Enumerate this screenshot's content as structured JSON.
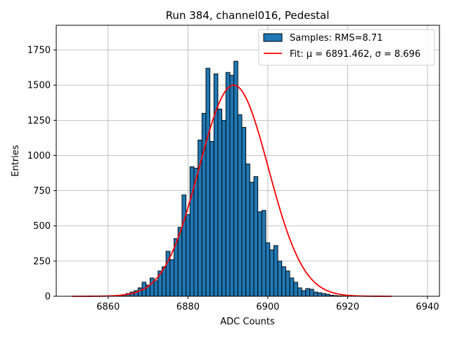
{
  "chart_data": {
    "type": "bar",
    "title": "Run 384, channel016, Pedestal",
    "xlabel": "ADC Counts",
    "ylabel": "Entries",
    "xlim": [
      6847,
      6943
    ],
    "ylim": [
      0,
      1925
    ],
    "xticks": [
      6860,
      6880,
      6900,
      6920,
      6940
    ],
    "yticks": [
      0,
      250,
      500,
      750,
      1000,
      1250,
      1500,
      1750
    ],
    "grid": true,
    "legend_position": "top-right",
    "bin_width": 1,
    "bar_color": "#1f77b4",
    "fit_color": "#ff0000",
    "bins": {
      "x": [
        6861,
        6862,
        6863,
        6864,
        6865,
        6866,
        6867,
        6868,
        6869,
        6870,
        6871,
        6872,
        6873,
        6874,
        6875,
        6876,
        6877,
        6878,
        6879,
        6880,
        6881,
        6882,
        6883,
        6884,
        6885,
        6886,
        6887,
        6888,
        6889,
        6890,
        6891,
        6892,
        6893,
        6894,
        6895,
        6896,
        6897,
        6898,
        6899,
        6900,
        6901,
        6902,
        6903,
        6904,
        6905,
        6906,
        6907,
        6908,
        6909,
        6910,
        6911,
        6912,
        6913,
        6914,
        6915,
        6916,
        6917,
        6918,
        6919,
        6920
      ],
      "values": [
        3,
        5,
        8,
        12,
        20,
        30,
        40,
        60,
        100,
        80,
        130,
        110,
        180,
        210,
        320,
        260,
        410,
        490,
        720,
        580,
        920,
        910,
        1110,
        1300,
        1620,
        1100,
        1580,
        1330,
        1250,
        1590,
        1570,
        1670,
        1290,
        1200,
        940,
        810,
        850,
        600,
        610,
        380,
        330,
        360,
        250,
        210,
        180,
        130,
        100,
        60,
        40,
        55,
        50,
        30,
        25,
        20,
        15,
        8,
        5,
        3,
        2,
        1
      ]
    },
    "series": [
      {
        "name": "Samples: RMS=8.71",
        "kind": "histogram"
      },
      {
        "name": "Fit: μ = 6891.462, σ = 8.696",
        "kind": "line",
        "mu": 6891.462,
        "sigma": 8.696,
        "amplitude": 1500,
        "x_range": [
          6851,
          6931
        ]
      }
    ]
  }
}
